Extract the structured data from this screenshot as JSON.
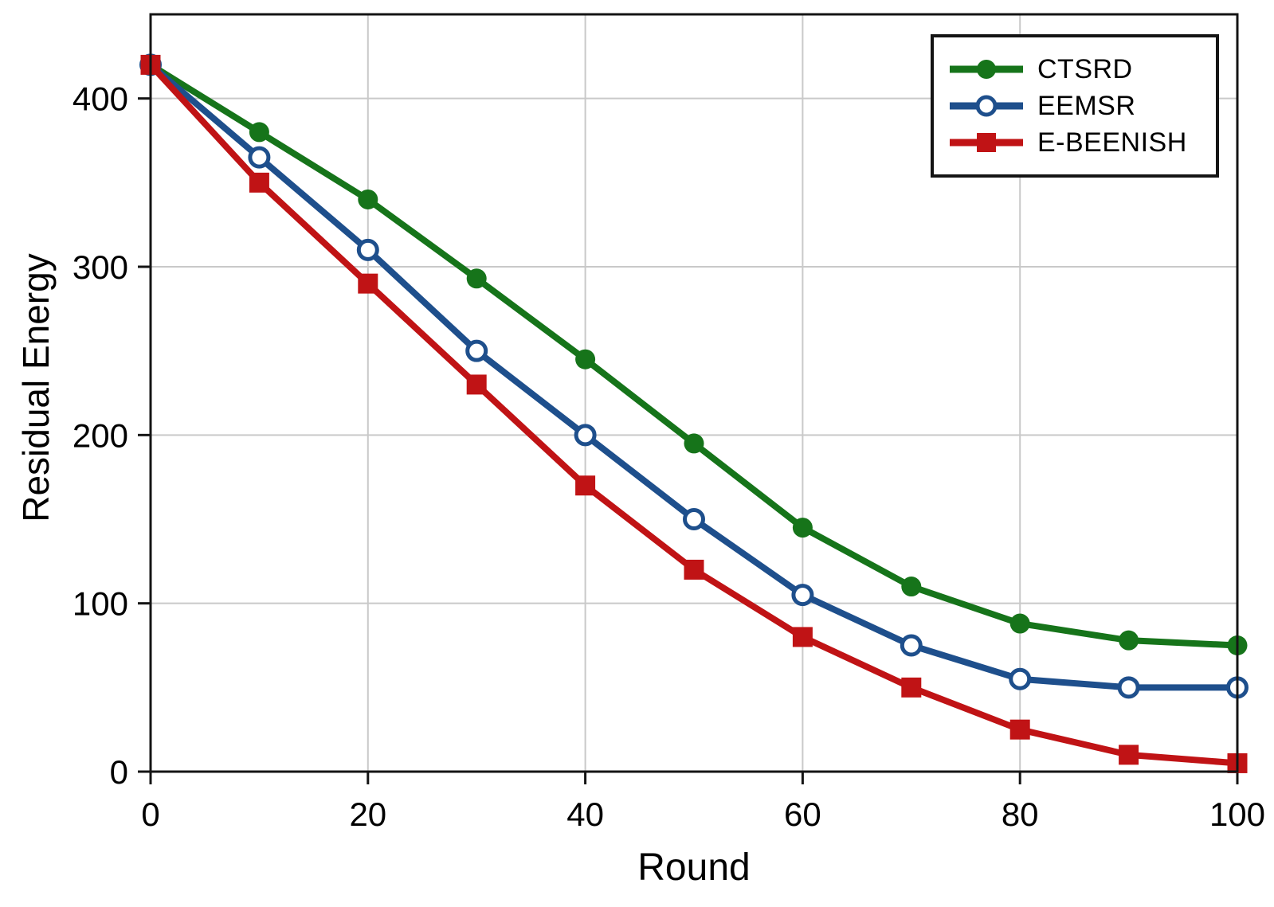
{
  "figure": {
    "background": "#ffffff",
    "frame_color": "#141414",
    "grid_color": "#c9c9c9",
    "tick_color": "#141414",
    "text_color": "#000000"
  },
  "chart_data": {
    "type": "line",
    "title": "",
    "xlabel": "Round",
    "ylabel": "Residual Energy",
    "xlim": [
      0,
      100
    ],
    "ylim": [
      0,
      450
    ],
    "x_ticks": [
      0,
      20,
      40,
      60,
      80,
      100
    ],
    "y_ticks": [
      0,
      100,
      200,
      300,
      400
    ],
    "grid": true,
    "legend_position": "top-right",
    "x": [
      0,
      10,
      20,
      30,
      40,
      50,
      60,
      70,
      80,
      90,
      100
    ],
    "series": [
      {
        "name": "CTSRD",
        "color": "#16741a",
        "marker": "filled-circle",
        "values": [
          420,
          380,
          340,
          293,
          245,
          195,
          145,
          110,
          88,
          78,
          75
        ]
      },
      {
        "name": "EEMSR",
        "color": "#1e4f8c",
        "marker": "open-circle",
        "values": [
          420,
          365,
          310,
          250,
          200,
          150,
          105,
          75,
          55,
          50,
          50
        ]
      },
      {
        "name": "E-BEENISH",
        "color": "#c01315",
        "marker": "filled-square",
        "values": [
          420,
          350,
          290,
          230,
          170,
          120,
          80,
          50,
          25,
          10,
          5
        ]
      }
    ]
  }
}
